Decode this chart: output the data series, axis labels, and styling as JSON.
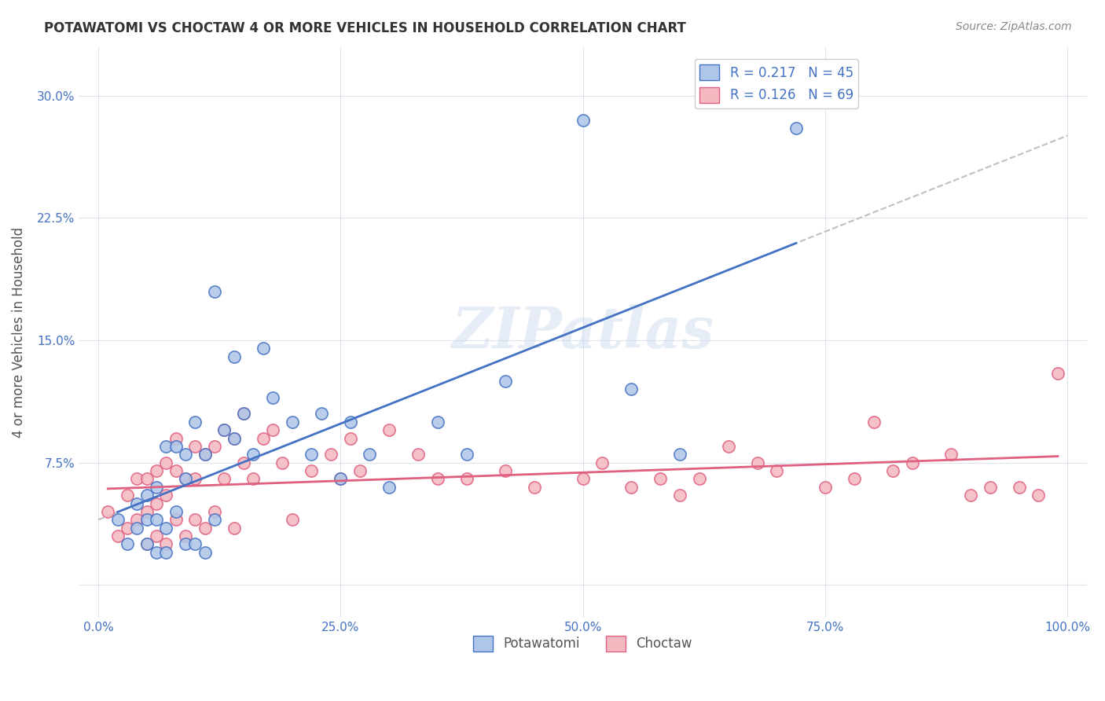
{
  "title": "POTAWATOMI VS CHOCTAW 4 OR MORE VEHICLES IN HOUSEHOLD CORRELATION CHART",
  "source_text": "Source: ZipAtlas.com",
  "xlabel": "",
  "ylabel": "4 or more Vehicles in Household",
  "legend_series": [
    "Potawatomi",
    "Choctaw"
  ],
  "r_values": [
    0.217,
    0.126
  ],
  "n_values": [
    45,
    69
  ],
  "potawatomi_color": "#aec6e8",
  "choctaw_color": "#f4b8c1",
  "potawatomi_line_color": "#4472c4",
  "choctaw_line_color": "#e06080",
  "trendline_gray": "#b0b0b0",
  "xlim": [
    0.0,
    1.0
  ],
  "ylim": [
    0.0,
    0.32
  ],
  "xticks": [
    0.0,
    0.25,
    0.5,
    0.75,
    1.0
  ],
  "yticks": [
    0.0,
    0.075,
    0.15,
    0.225,
    0.3
  ],
  "xtick_labels": [
    "0.0%",
    "25.0%",
    "50.0%",
    "75.0%",
    "100.0%"
  ],
  "ytick_labels": [
    "",
    "7.5%",
    "15.0%",
    "22.5%",
    "30.0%"
  ],
  "watermark": "ZIPatlas",
  "potawatomi_x": [
    0.02,
    0.03,
    0.04,
    0.04,
    0.05,
    0.05,
    0.05,
    0.06,
    0.06,
    0.06,
    0.07,
    0.07,
    0.07,
    0.08,
    0.08,
    0.09,
    0.09,
    0.09,
    0.1,
    0.1,
    0.11,
    0.11,
    0.12,
    0.12,
    0.13,
    0.14,
    0.14,
    0.15,
    0.16,
    0.17,
    0.18,
    0.2,
    0.22,
    0.23,
    0.25,
    0.26,
    0.28,
    0.3,
    0.35,
    0.38,
    0.42,
    0.5,
    0.55,
    0.6,
    0.72
  ],
  "potawatomi_y": [
    0.04,
    0.025,
    0.05,
    0.035,
    0.025,
    0.04,
    0.055,
    0.02,
    0.04,
    0.06,
    0.02,
    0.035,
    0.085,
    0.045,
    0.085,
    0.025,
    0.065,
    0.08,
    0.025,
    0.1,
    0.02,
    0.08,
    0.04,
    0.18,
    0.095,
    0.09,
    0.14,
    0.105,
    0.08,
    0.145,
    0.115,
    0.1,
    0.08,
    0.105,
    0.065,
    0.1,
    0.08,
    0.06,
    0.1,
    0.08,
    0.125,
    0.285,
    0.12,
    0.08,
    0.28
  ],
  "choctaw_x": [
    0.01,
    0.02,
    0.03,
    0.03,
    0.04,
    0.04,
    0.05,
    0.05,
    0.05,
    0.06,
    0.06,
    0.06,
    0.07,
    0.07,
    0.07,
    0.08,
    0.08,
    0.08,
    0.09,
    0.09,
    0.1,
    0.1,
    0.1,
    0.11,
    0.11,
    0.12,
    0.12,
    0.13,
    0.13,
    0.14,
    0.14,
    0.15,
    0.15,
    0.16,
    0.17,
    0.18,
    0.19,
    0.2,
    0.22,
    0.24,
    0.25,
    0.26,
    0.27,
    0.3,
    0.33,
    0.35,
    0.38,
    0.42,
    0.45,
    0.5,
    0.52,
    0.55,
    0.58,
    0.6,
    0.62,
    0.65,
    0.68,
    0.7,
    0.75,
    0.78,
    0.8,
    0.82,
    0.84,
    0.88,
    0.9,
    0.92,
    0.95,
    0.97,
    0.99
  ],
  "choctaw_y": [
    0.045,
    0.03,
    0.055,
    0.035,
    0.04,
    0.065,
    0.025,
    0.045,
    0.065,
    0.03,
    0.05,
    0.07,
    0.025,
    0.055,
    0.075,
    0.04,
    0.07,
    0.09,
    0.03,
    0.065,
    0.04,
    0.065,
    0.085,
    0.035,
    0.08,
    0.045,
    0.085,
    0.095,
    0.065,
    0.035,
    0.09,
    0.075,
    0.105,
    0.065,
    0.09,
    0.095,
    0.075,
    0.04,
    0.07,
    0.08,
    0.065,
    0.09,
    0.07,
    0.095,
    0.08,
    0.065,
    0.065,
    0.07,
    0.06,
    0.065,
    0.075,
    0.06,
    0.065,
    0.055,
    0.065,
    0.085,
    0.075,
    0.07,
    0.06,
    0.065,
    0.1,
    0.07,
    0.075,
    0.08,
    0.055,
    0.06,
    0.06,
    0.055,
    0.13
  ]
}
